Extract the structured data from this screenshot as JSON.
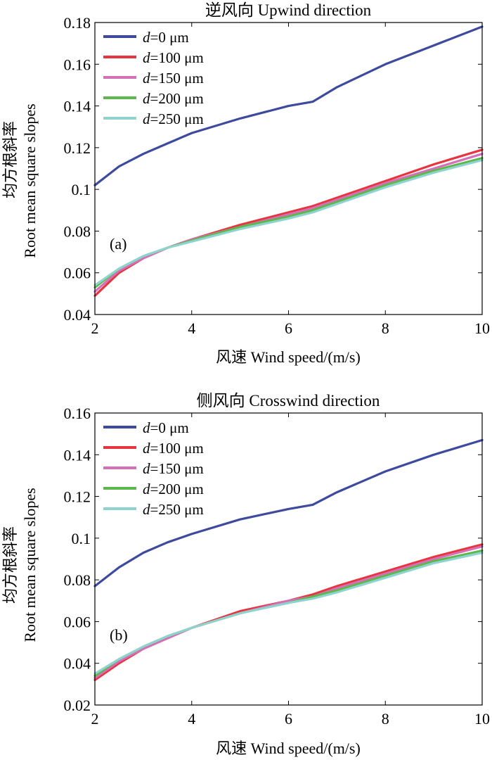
{
  "colors": {
    "series": [
      "#3d4a9e",
      "#e8343f",
      "#d46fb8",
      "#5cb84a",
      "#8fd3cf"
    ]
  },
  "chart_data": [
    {
      "type": "line",
      "title": "逆风向 Upwind direction",
      "panel_label": "(a)",
      "xlabel": "风速 Wind speed/(m/s)",
      "ylabel_zh": "均方根斜率",
      "ylabel_en": "Root mean square slopes",
      "xlim": [
        2,
        10
      ],
      "ylim": [
        0.04,
        0.18
      ],
      "xticks": [
        "2",
        "4",
        "6",
        "8",
        "10"
      ],
      "yticks": [
        "0.04",
        "0.06",
        "0.08",
        "0.1",
        "0.12",
        "0.14",
        "0.16",
        "0.18"
      ],
      "legend_position": "top-left",
      "x": [
        2,
        2.5,
        3,
        3.5,
        4,
        5,
        6,
        6.5,
        7,
        8,
        9,
        10
      ],
      "series": [
        {
          "label_var": "d",
          "label_rest": "=0 μm",
          "values": [
            0.102,
            0.111,
            0.117,
            0.122,
            0.127,
            0.134,
            0.14,
            0.142,
            0.149,
            0.16,
            0.169,
            0.178
          ]
        },
        {
          "label_var": "d",
          "label_rest": "=100 μm",
          "values": [
            0.049,
            0.06,
            0.067,
            0.072,
            0.076,
            0.083,
            0.089,
            0.092,
            0.096,
            0.104,
            0.112,
            0.119
          ]
        },
        {
          "label_var": "d",
          "label_rest": "=150 μm",
          "values": [
            0.051,
            0.061,
            0.067,
            0.072,
            0.076,
            0.082,
            0.088,
            0.091,
            0.095,
            0.103,
            0.11,
            0.117
          ]
        },
        {
          "label_var": "d",
          "label_rest": "=200 μm",
          "values": [
            0.053,
            0.062,
            0.068,
            0.072,
            0.0755,
            0.082,
            0.087,
            0.09,
            0.094,
            0.102,
            0.109,
            0.115
          ]
        },
        {
          "label_var": "d",
          "label_rest": "=250 μm",
          "values": [
            0.054,
            0.062,
            0.068,
            0.072,
            0.075,
            0.081,
            0.086,
            0.089,
            0.093,
            0.101,
            0.108,
            0.114
          ]
        }
      ]
    },
    {
      "type": "line",
      "title": "侧风向 Crosswind direction",
      "panel_label": "(b)",
      "xlabel": "风速 Wind speed/(m/s)",
      "ylabel_zh": "均方根斜率",
      "ylabel_en": "Root mean square slopes",
      "xlim": [
        2,
        10
      ],
      "ylim": [
        0.02,
        0.16
      ],
      "xticks": [
        "2",
        "4",
        "6",
        "8",
        "10"
      ],
      "yticks": [
        "0.02",
        "0.04",
        "0.06",
        "0.08",
        "0.1",
        "0.12",
        "0.14",
        "0.16"
      ],
      "legend_position": "top-left",
      "x": [
        2,
        2.5,
        3,
        3.5,
        4,
        5,
        6,
        6.5,
        7,
        8,
        9,
        10
      ],
      "series": [
        {
          "label_var": "d",
          "label_rest": "=0 μm",
          "values": [
            0.077,
            0.086,
            0.093,
            0.098,
            0.102,
            0.109,
            0.114,
            0.116,
            0.122,
            0.132,
            0.14,
            0.147
          ]
        },
        {
          "label_var": "d",
          "label_rest": "=100 μm",
          "values": [
            0.032,
            0.04,
            0.047,
            0.052,
            0.057,
            0.065,
            0.07,
            0.073,
            0.077,
            0.084,
            0.091,
            0.097
          ]
        },
        {
          "label_var": "d",
          "label_rest": "=150 μm",
          "values": [
            0.033,
            0.041,
            0.047,
            0.052,
            0.057,
            0.064,
            0.07,
            0.072,
            0.076,
            0.083,
            0.09,
            0.096
          ]
        },
        {
          "label_var": "d",
          "label_rest": "=200 μm",
          "values": [
            0.034,
            0.042,
            0.048,
            0.053,
            0.057,
            0.064,
            0.069,
            0.072,
            0.075,
            0.082,
            0.089,
            0.094
          ]
        },
        {
          "label_var": "d",
          "label_rest": "=250 μm",
          "values": [
            0.035,
            0.042,
            0.048,
            0.053,
            0.057,
            0.064,
            0.069,
            0.071,
            0.074,
            0.081,
            0.088,
            0.093
          ]
        }
      ]
    }
  ]
}
